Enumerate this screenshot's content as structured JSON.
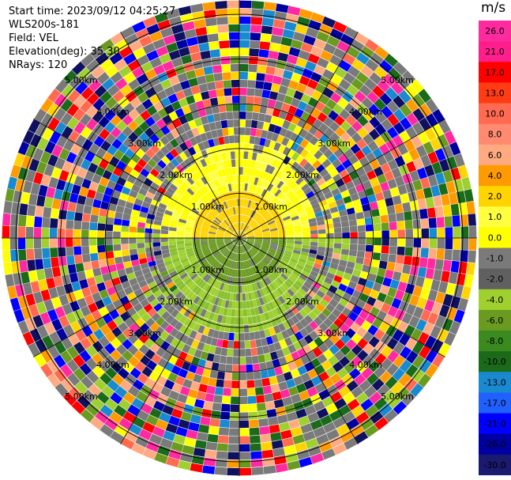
{
  "header": {
    "start_time": "Start time: 2023/09/12 04:25:27",
    "instrument": "WLS200s-181",
    "field": "Field: VEL",
    "elevation": "Elevation(deg): 35.30",
    "nrays": "NRays: 120"
  },
  "colorbar": {
    "unit": "m/s",
    "ticks": [
      "26.0",
      "21.0",
      "17.0",
      "13.0",
      "10.0",
      "8.0",
      "6.0",
      "4.0",
      "2.0",
      "1.0",
      "0.0",
      "-1.0",
      "-2.0",
      "-4.0",
      "-6.0",
      "-8.0",
      "-10.0",
      "-13.0",
      "-17.0",
      "-21.0",
      "-26.0",
      "-30.0"
    ],
    "colors": [
      "#ff2aa0",
      "#ff1e8c",
      "#ff0000",
      "#ff3c14",
      "#ff6a50",
      "#ff8a70",
      "#ffaa80",
      "#ff9a00",
      "#ffd400",
      "#ffff40",
      "#ffff00",
      "#7a7a7a",
      "#606060",
      "#a0d030",
      "#6a9a20",
      "#3a8a20",
      "#1a6a1a",
      "#1a8ad0",
      "#2060ff",
      "#0000ff",
      "#0000a0",
      "#1a1a70",
      "#101060"
    ]
  },
  "chart_data": {
    "type": "heatmap",
    "projection": "polar (PPI)",
    "field": "VEL",
    "units": "m/s",
    "nrays": 120,
    "elevation_deg": 35.3,
    "range_ring_labels": [
      "1.00km",
      "2.00km",
      "3.00km",
      "4.00km",
      "5.00km"
    ],
    "vmin": -30.0,
    "vmax": 30.0,
    "pattern": "positive velocities (yellow) north of center, negative velocities (green) south of center within ~2 km; noisy multicolor returns beyond"
  }
}
